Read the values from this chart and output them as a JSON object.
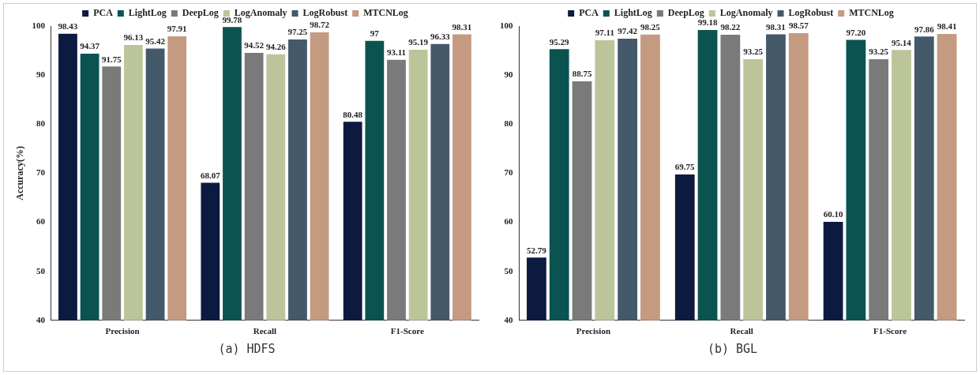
{
  "chart_data": [
    {
      "type": "bar",
      "ylabel": "Accuracy(%)",
      "categories": [
        "Precision",
        "Recall",
        "F1-Score"
      ],
      "ylim": [
        40,
        100
      ],
      "yticks": [
        40,
        50,
        60,
        70,
        80,
        90,
        100
      ],
      "grid": false,
      "legend": "top",
      "annotations": [
        "(a) HDFS"
      ],
      "series": [
        {
          "name": "PCA",
          "color": "#0c1a3f",
          "values": [
            98.43,
            68.07,
            80.48
          ],
          "value_labels": [
            "98.43",
            "68.07",
            "80.48"
          ]
        },
        {
          "name": "LightLog",
          "color": "#0b5350",
          "values": [
            94.37,
            99.78,
            97
          ],
          "value_labels": [
            "94.37",
            "99.78",
            "97"
          ]
        },
        {
          "name": "DeepLog",
          "color": "#7a7a7a",
          "values": [
            91.75,
            94.52,
            93.11
          ],
          "value_labels": [
            "91.75",
            "94.52",
            "93.11"
          ]
        },
        {
          "name": "LogAnomaly",
          "color": "#bcc59a",
          "values": [
            96.13,
            94.26,
            95.19
          ],
          "value_labels": [
            "96.13",
            "94.26",
            "95.19"
          ]
        },
        {
          "name": "LogRobust",
          "color": "#44596a",
          "values": [
            95.42,
            97.25,
            96.33
          ],
          "value_labels": [
            "95.42",
            "97.25",
            "96.33"
          ]
        },
        {
          "name": "MTCNLog",
          "color": "#c49a80",
          "values": [
            97.91,
            98.72,
            98.31
          ],
          "value_labels": [
            "97.91",
            "98.72",
            "98.31"
          ]
        }
      ]
    },
    {
      "type": "bar",
      "categories": [
        "Precision",
        "Recall",
        "F1-Score"
      ],
      "ylim": [
        40,
        100
      ],
      "yticks": [
        40,
        50,
        60,
        70,
        80,
        90,
        100
      ],
      "grid": false,
      "legend": "top",
      "annotations": [
        "(b) BGL"
      ],
      "series": [
        {
          "name": "PCA",
          "color": "#0c1a3f",
          "values": [
            52.79,
            69.75,
            60.1
          ],
          "value_labels": [
            "52.79",
            "69.75",
            "60.10"
          ]
        },
        {
          "name": "LightLog",
          "color": "#0b5350",
          "values": [
            95.29,
            99.18,
            97.2
          ],
          "value_labels": [
            "95.29",
            "99.18",
            "97.20"
          ]
        },
        {
          "name": "DeepLog",
          "color": "#7a7a7a",
          "values": [
            88.75,
            98.22,
            93.25
          ],
          "value_labels": [
            "88.75",
            "98.22",
            "93.25"
          ]
        },
        {
          "name": "LogAnomaly",
          "color": "#bcc59a",
          "values": [
            97.11,
            93.25,
            95.14
          ],
          "value_labels": [
            "97.11",
            "93.25",
            "95.14"
          ]
        },
        {
          "name": "LogRobust",
          "color": "#44596a",
          "values": [
            97.42,
            98.31,
            97.86
          ],
          "value_labels": [
            "97.42",
            "98.31",
            "97.86"
          ]
        },
        {
          "name": "MTCNLog",
          "color": "#c49a80",
          "values": [
            98.25,
            98.57,
            98.41
          ],
          "value_labels": [
            "98.25",
            "98.57",
            "98.41"
          ]
        }
      ]
    }
  ]
}
